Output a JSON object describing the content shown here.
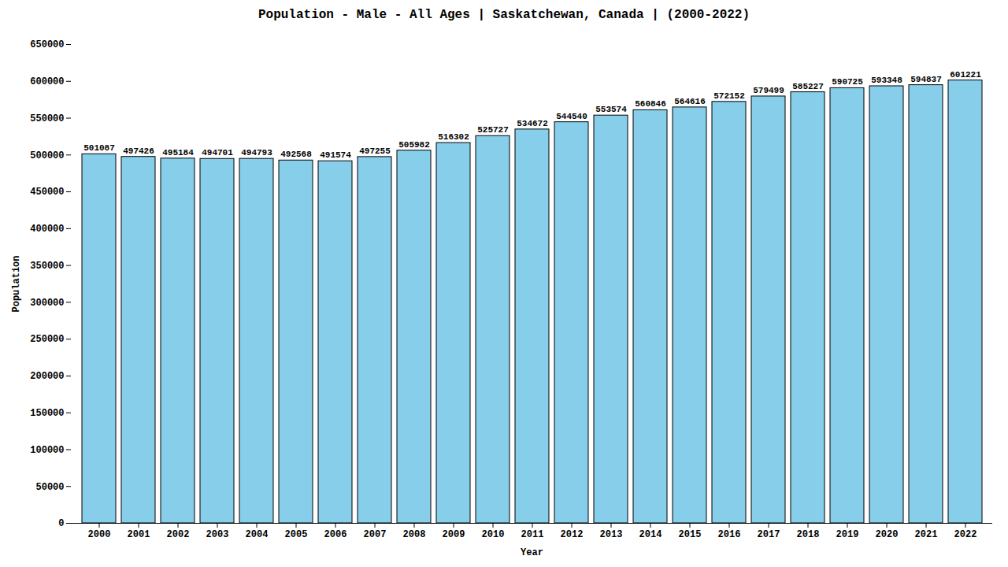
{
  "chart_data": {
    "type": "bar",
    "title": "Population - Male - All Ages | Saskatchewan, Canada |  (2000-2022)",
    "xlabel": "Year",
    "ylabel": "Population",
    "categories": [
      "2000",
      "2001",
      "2002",
      "2003",
      "2004",
      "2005",
      "2006",
      "2007",
      "2008",
      "2009",
      "2010",
      "2011",
      "2012",
      "2013",
      "2014",
      "2015",
      "2016",
      "2017",
      "2018",
      "2019",
      "2020",
      "2021",
      "2022"
    ],
    "values": [
      501087,
      497426,
      495184,
      494701,
      494793,
      492568,
      491574,
      497255,
      505982,
      516302,
      525727,
      534672,
      544540,
      553574,
      560846,
      564616,
      572152,
      579499,
      585227,
      590725,
      593348,
      594837,
      601221
    ],
    "color": "#87CEEB",
    "ylim": [
      0,
      650000
    ],
    "yticks": [
      0,
      50000,
      100000,
      150000,
      200000,
      250000,
      300000,
      350000,
      400000,
      450000,
      500000,
      550000,
      600000,
      650000
    ],
    "grid": false,
    "data_labels": true
  }
}
